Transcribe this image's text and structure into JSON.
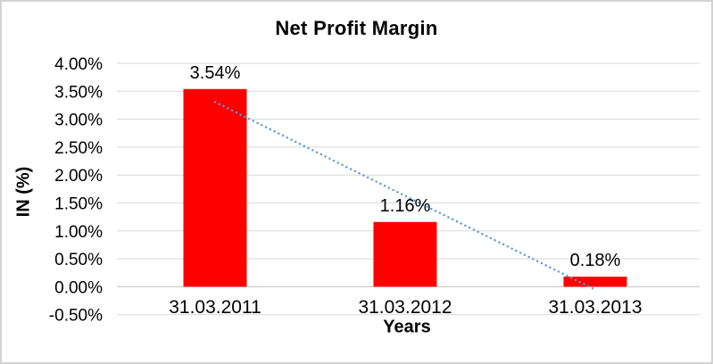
{
  "chart_data": {
    "type": "bar",
    "title": "Net Profit Margin",
    "xlabel": "Years",
    "ylabel": "IN (%)",
    "categories": [
      "31.03.2011",
      "31.03.2012",
      "31.03.2013"
    ],
    "values": [
      3.54,
      1.16,
      0.18
    ],
    "data_labels": [
      "3.54%",
      "1.16%",
      "0.18%"
    ],
    "ylim": [
      -0.5,
      4.0
    ],
    "ytick_step": 0.5,
    "ytick_labels": [
      "4.00%",
      "3.50%",
      "3.00%",
      "2.50%",
      "2.00%",
      "1.50%",
      "1.00%",
      "0.50%",
      "0.00%",
      "-0.50%"
    ],
    "grid": true,
    "legend": "none",
    "bar_color": "#FF0000",
    "gridline_color": "#D9D9D9",
    "axis_line_color": "#C0C0C0",
    "trendline": {
      "type": "linear",
      "style": "dotted",
      "color": "#5B9BD5"
    }
  }
}
